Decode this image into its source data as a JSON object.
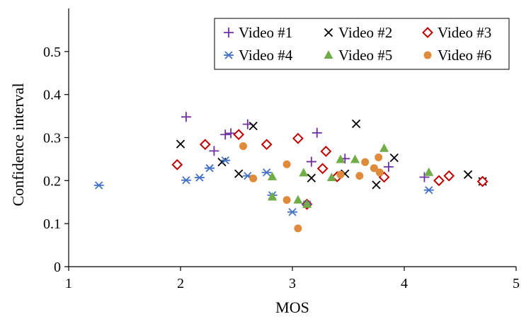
{
  "chart_data": {
    "type": "scatter",
    "title": "",
    "xlabel": "MOS",
    "ylabel": "Confidence interval",
    "xlim": [
      1,
      5
    ],
    "ylim": [
      0,
      0.6
    ],
    "xticks": [
      1,
      2,
      3,
      4,
      5
    ],
    "yticks": [
      0,
      0.1,
      0.2,
      0.3,
      0.4,
      0.5
    ],
    "x_tick_labels": [
      "1",
      "2",
      "3",
      "4",
      "5"
    ],
    "y_tick_labels": [
      "0",
      "0.1",
      "0.2",
      "0.3",
      "0.4",
      "0.5"
    ],
    "grid": false,
    "legend_position": "top-right",
    "series": [
      {
        "name": "Video #1",
        "marker": "plus",
        "color": "#7030a0",
        "points": [
          [
            2.05,
            0.348
          ],
          [
            2.3,
            0.269
          ],
          [
            2.4,
            0.307
          ],
          [
            2.45,
            0.31
          ],
          [
            2.6,
            0.331
          ],
          [
            3.17,
            0.244
          ],
          [
            3.22,
            0.311
          ],
          [
            3.47,
            0.251
          ],
          [
            3.86,
            0.232
          ],
          [
            4.18,
            0.208
          ]
        ]
      },
      {
        "name": "Video #2",
        "marker": "x",
        "color": "#000000",
        "points": [
          [
            2.0,
            0.285
          ],
          [
            2.37,
            0.243
          ],
          [
            2.52,
            0.216
          ],
          [
            2.65,
            0.327
          ],
          [
            3.17,
            0.206
          ],
          [
            3.47,
            0.216
          ],
          [
            3.57,
            0.332
          ],
          [
            3.75,
            0.19
          ],
          [
            3.91,
            0.253
          ],
          [
            4.57,
            0.214
          ],
          [
            4.7,
            0.198
          ]
        ]
      },
      {
        "name": "Video #3",
        "marker": "diamond",
        "color": "#c00000",
        "points": [
          [
            1.97,
            0.237
          ],
          [
            2.22,
            0.284
          ],
          [
            2.52,
            0.307
          ],
          [
            2.77,
            0.284
          ],
          [
            3.05,
            0.298
          ],
          [
            3.13,
            0.145
          ],
          [
            3.27,
            0.228
          ],
          [
            3.3,
            0.268
          ],
          [
            3.4,
            0.209
          ],
          [
            3.82,
            0.208
          ],
          [
            4.31,
            0.2
          ],
          [
            4.4,
            0.211
          ],
          [
            4.7,
            0.198
          ]
        ]
      },
      {
        "name": "Video #4",
        "marker": "asterisk",
        "color": "#4472c4",
        "points": [
          [
            1.27,
            0.189
          ],
          [
            2.05,
            0.201
          ],
          [
            2.17,
            0.207
          ],
          [
            2.26,
            0.229
          ],
          [
            2.4,
            0.247
          ],
          [
            2.6,
            0.211
          ],
          [
            2.77,
            0.219
          ],
          [
            2.82,
            0.166
          ],
          [
            3.0,
            0.127
          ],
          [
            3.13,
            0.145
          ],
          [
            4.22,
            0.178
          ]
        ]
      },
      {
        "name": "Video #5",
        "marker": "triangle",
        "color": "#70ad47",
        "points": [
          [
            2.82,
            0.209
          ],
          [
            2.82,
            0.162
          ],
          [
            3.05,
            0.155
          ],
          [
            3.1,
            0.218
          ],
          [
            3.13,
            0.145
          ],
          [
            3.35,
            0.207
          ],
          [
            3.43,
            0.249
          ],
          [
            3.56,
            0.249
          ],
          [
            3.82,
            0.275
          ],
          [
            4.22,
            0.219
          ]
        ]
      },
      {
        "name": "Video #6",
        "marker": "circle",
        "color": "#e08a3c",
        "points": [
          [
            2.56,
            0.28
          ],
          [
            2.65,
            0.205
          ],
          [
            2.95,
            0.238
          ],
          [
            2.95,
            0.155
          ],
          [
            3.05,
            0.089
          ],
          [
            3.43,
            0.214
          ],
          [
            3.6,
            0.211
          ],
          [
            3.65,
            0.243
          ],
          [
            3.73,
            0.229
          ],
          [
            3.77,
            0.254
          ],
          [
            3.78,
            0.219
          ]
        ]
      }
    ]
  }
}
